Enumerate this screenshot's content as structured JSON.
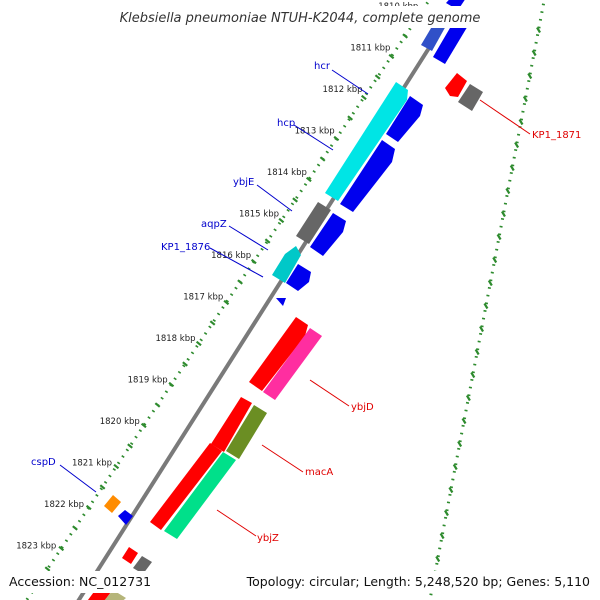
{
  "title": "Klebsiella pneumoniae NTUH-K2044, complete genome",
  "footer": {
    "accession": "Accession: NC_012731",
    "summary": "Topology: circular; Length: 5,248,520 bp; Genes: 5,110"
  },
  "colors": {
    "backbone": "#808080",
    "tick": "#2e8b2e",
    "label_blue": "#0000cc",
    "label_red": "#e00000",
    "cds_forward": "#0000ee",
    "cds_reverse": "#ff0000",
    "cyan": "#00e5e5",
    "grey": "#666666",
    "pink": "#ff2ea0",
    "olive": "#6b8e23",
    "seagreen": "#00e08a",
    "orange": "#ff8c00",
    "khaki": "#b5b57a"
  },
  "scale_labels": [
    "1810 kbp",
    "1811 kbp",
    "1812 kbp",
    "1813 kbp",
    "1814 kbp",
    "1815 kbp",
    "1816 kbp",
    "1817 kbp",
    "1818 kbp",
    "1819 kbp",
    "1820 kbp",
    "1821 kbp",
    "1822 kbp",
    "1823 kbp"
  ],
  "gene_labels": [
    {
      "name": "hcr",
      "color": "blue"
    },
    {
      "name": "hcp",
      "color": "blue"
    },
    {
      "name": "ybjE",
      "color": "blue"
    },
    {
      "name": "aqpZ",
      "color": "blue"
    },
    {
      "name": "KP1_1876",
      "color": "blue"
    },
    {
      "name": "cspD",
      "color": "blue"
    },
    {
      "name": "KP1_1871",
      "color": "red"
    },
    {
      "name": "ybjD",
      "color": "red"
    },
    {
      "name": "macA",
      "color": "red"
    },
    {
      "name": "ybjZ",
      "color": "red"
    }
  ]
}
